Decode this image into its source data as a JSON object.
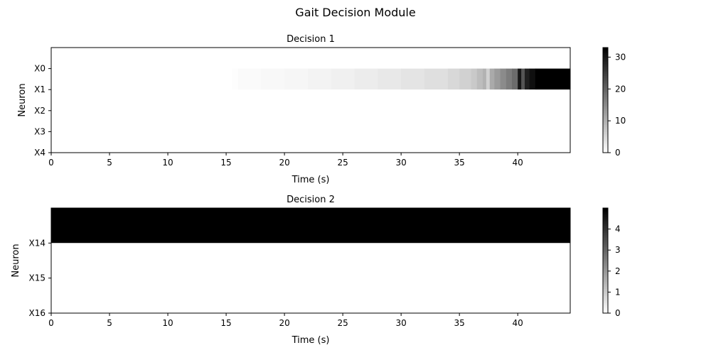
{
  "figure": {
    "title": "Gait Decision Module"
  },
  "chart_data": [
    {
      "type": "heatmap",
      "title": "Decision 1",
      "xlabel": "Time (s)",
      "ylabel": "Neuron",
      "xlim": [
        0,
        44.5
      ],
      "x_ticks": [
        0,
        5,
        10,
        15,
        20,
        25,
        30,
        35,
        40
      ],
      "y_tick_labels": [
        "X0",
        "X1",
        "X2",
        "X3",
        "X4"
      ],
      "ylim": [
        -1,
        4
      ],
      "colormap": "gray_r",
      "colorbar": {
        "range": [
          0,
          33
        ],
        "ticks": [
          0,
          10,
          20,
          30
        ]
      },
      "rows": [
        {
          "y_from": 0,
          "y_to": 1,
          "time_bins": [
            0,
            15.5,
            16,
            18,
            20,
            22,
            24,
            26,
            28,
            30,
            32,
            34,
            35,
            36,
            36.5,
            37,
            37.3,
            37.6,
            38,
            38.5,
            39,
            39.5,
            40,
            40.3,
            40.6,
            41,
            41.5,
            44.5
          ],
          "values": [
            0,
            0.3,
            0.6,
            0.9,
            1.2,
            1.6,
            2.0,
            2.5,
            3.0,
            3.5,
            4.2,
            5.0,
            6.0,
            7.0,
            8.5,
            10,
            6,
            11,
            13,
            15,
            17,
            19,
            30,
            22,
            29,
            31,
            33
          ]
        },
        {
          "y_from": 1,
          "y_to": 4,
          "time_bins": [
            0,
            44.5
          ],
          "values": [
            0
          ]
        }
      ]
    },
    {
      "type": "heatmap",
      "title": "Decision 2",
      "xlabel": "Time (s)",
      "ylabel": "Neuron",
      "xlim": [
        0,
        44.5
      ],
      "x_ticks": [
        0,
        5,
        10,
        15,
        20,
        25,
        30,
        35,
        40
      ],
      "y_tick_labels": [
        "X14",
        "X15",
        "X16"
      ],
      "ylim": [
        13,
        16
      ],
      "colormap": "gray_r",
      "colorbar": {
        "range": [
          0,
          5
        ],
        "ticks": [
          0,
          1,
          2,
          3,
          4
        ]
      },
      "rows": [
        {
          "y_from": 13,
          "y_to": 14,
          "time_bins": [
            0,
            44.5
          ],
          "values": [
            5
          ]
        },
        {
          "y_from": 14,
          "y_to": 16,
          "time_bins": [
            0,
            44.5
          ],
          "values": [
            0
          ]
        }
      ]
    }
  ]
}
